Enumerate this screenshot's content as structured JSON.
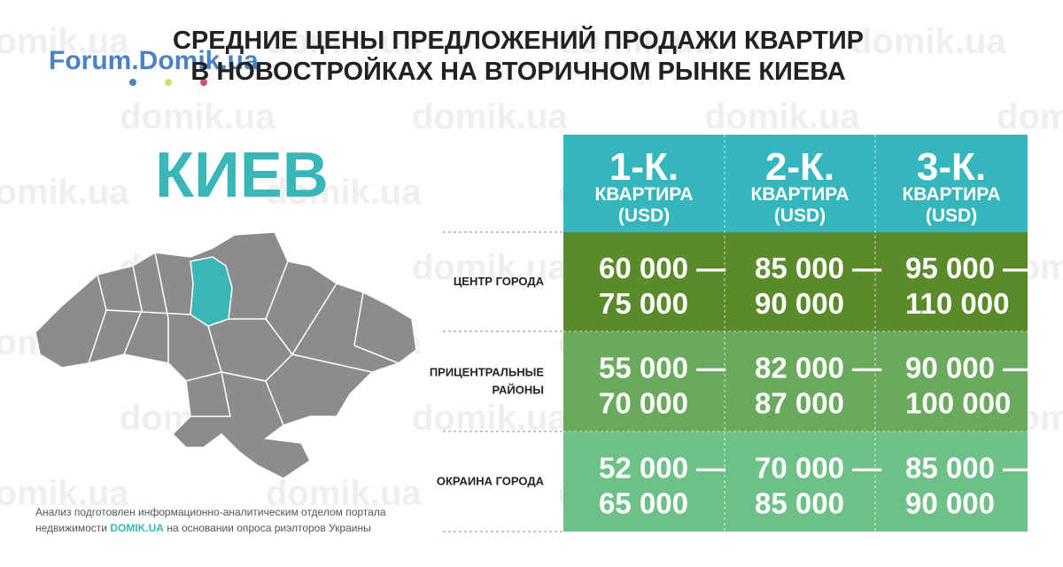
{
  "watermark": "domik.ua",
  "logo": "Forum.Domik.ua",
  "title": [
    "СРЕДНИЕ ЦЕНЫ ПРЕДЛОЖЕНИЙ ПРОДАЖИ КВАРТИР",
    "В НОВОСТРОЙКАХ НА ВТОРИЧНОМ РЫНКЕ КИЕВА"
  ],
  "city": "КИЕВ",
  "table": {
    "columns": [
      {
        "rooms": "1-К.",
        "type": "КВАРТИРА",
        "unit": "(USD)"
      },
      {
        "rooms": "2-К.",
        "type": "КВАРТИРА",
        "unit": "(USD)"
      },
      {
        "rooms": "3-К.",
        "type": "КВАРТИРА",
        "unit": "(USD)"
      }
    ],
    "rows": [
      {
        "label": [
          "ЦЕНТР ГОРОДА"
        ],
        "cells": [
          [
            "60 000 —",
            "75 000"
          ],
          [
            "85 000 —",
            "90 000"
          ],
          [
            "95 000 —",
            "110 000"
          ]
        ]
      },
      {
        "label": [
          "ПРИЦЕНТРАЛЬНЫЕ",
          "РАЙОНЫ"
        ],
        "cells": [
          [
            "55 000 —",
            "70 000"
          ],
          [
            "82 000 —",
            "87 000"
          ],
          [
            "90 000 —",
            "100 000"
          ]
        ]
      },
      {
        "label": [
          "ОКРАИНА ГОРОДА"
        ],
        "cells": [
          [
            "52 000 —",
            "65 000"
          ],
          [
            "70 000 —",
            "85 000"
          ],
          [
            "85 000 —",
            "90 000"
          ]
        ]
      }
    ]
  },
  "footnote": {
    "line1": "Анализ подготовлен информационно-аналитическим отделом портала",
    "before": "недвижимости ",
    "link": "DOMIK.UA",
    "after": " на основании опроса риэлторов Украины"
  }
}
